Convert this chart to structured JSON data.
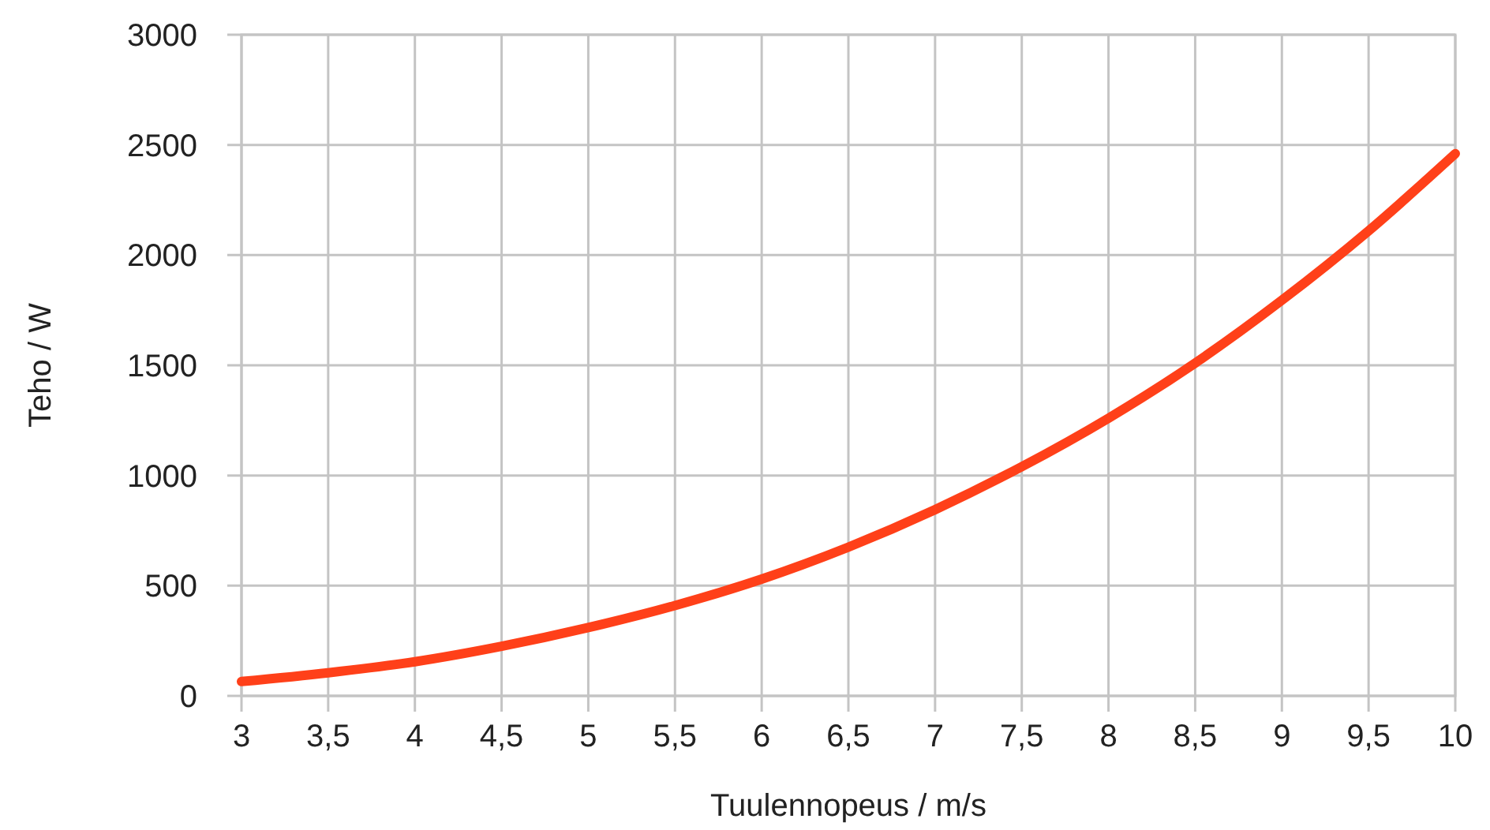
{
  "chart_data": {
    "type": "line",
    "xlabel": "Tuulennopeus / m/s",
    "ylabel": "Teho / W",
    "x": [
      3,
      3.5,
      4,
      4.5,
      5,
      5.5,
      6,
      6.5,
      7,
      7.5,
      8,
      8.5,
      9,
      9.5,
      10
    ],
    "series": [
      {
        "color": "#ff4019",
        "values": [
          65,
          105,
          155,
          225,
          310,
          410,
          530,
          675,
          845,
          1040,
          1260,
          1510,
          1795,
          2110,
          2460
        ]
      }
    ],
    "xlim": [
      3,
      10
    ],
    "ylim": [
      0,
      3000
    ],
    "xticks": [
      3,
      {
        "value": 3.5,
        "label": "3,5"
      },
      4,
      {
        "value": 4.5,
        "label": "4,5"
      },
      5,
      {
        "value": 5.5,
        "label": "5,5"
      },
      6,
      {
        "value": 6.5,
        "label": "6,5"
      },
      7,
      {
        "value": 7.5,
        "label": "7,5"
      },
      8,
      {
        "value": 8.5,
        "label": "8,5"
      },
      9,
      {
        "value": 9.5,
        "label": "9,5"
      },
      10
    ],
    "yticks": [
      0,
      500,
      1000,
      1500,
      2000,
      2500,
      3000
    ],
    "grid": true,
    "marker": "none",
    "line_style": "solid"
  }
}
